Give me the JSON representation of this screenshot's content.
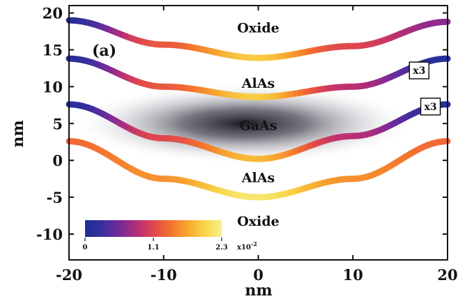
{
  "chart_data": {
    "type": "line",
    "panel_label": "(a)",
    "xlabel": "nm",
    "ylabel": "nm",
    "xlim": [
      -20,
      20
    ],
    "ylim": [
      -13.5,
      21
    ],
    "xticks": [
      -20,
      -10,
      0,
      10,
      20
    ],
    "yticks": [
      -10,
      -5,
      0,
      5,
      10,
      15,
      20
    ],
    "grid": false,
    "interfaces": [
      {
        "x": [
          -20,
          -10,
          0,
          10,
          20
        ],
        "y": [
          19,
          15.7,
          13.9,
          15.5,
          18.8
        ],
        "c": [
          0.05,
          0.55,
          0.85,
          0.5,
          0.3
        ]
      },
      {
        "x": [
          -20,
          -10,
          0,
          10,
          20
        ],
        "y": [
          13.8,
          10,
          8.6,
          10,
          13.8
        ],
        "c": [
          0.05,
          0.55,
          0.85,
          0.4,
          0.05
        ],
        "scale_label": "x3"
      },
      {
        "x": [
          -20,
          -10,
          0,
          10,
          20
        ],
        "y": [
          7.6,
          3.0,
          0.2,
          3.3,
          7.6
        ],
        "c": [
          0.05,
          0.5,
          0.8,
          0.4,
          0.05
        ],
        "scale_label": "x3"
      },
      {
        "x": [
          -20,
          -10,
          0,
          10,
          20
        ],
        "y": [
          2.6,
          -2.5,
          -5,
          -2.5,
          2.6
        ],
        "c": [
          0.6,
          0.7,
          0.95,
          0.7,
          0.6
        ]
      }
    ],
    "regions": [
      {
        "label": "Oxide",
        "x": 0,
        "y": 18
      },
      {
        "label": "AlAs",
        "x": 0,
        "y": 10.5
      },
      {
        "label": "GaAs",
        "x": 0,
        "y": 4.8
      },
      {
        "label": "AlAs",
        "x": 0,
        "y": -2.3
      },
      {
        "label": "Oxide",
        "x": 0,
        "y": -8.2
      }
    ],
    "density": {
      "label": "GaAs",
      "center": [
        -1.5,
        5
      ],
      "spread": [
        7,
        2.5
      ]
    },
    "colorbar": {
      "min": 0,
      "max": 2.3,
      "ticks": [
        "0",
        "1.1",
        "2.3"
      ],
      "units": "x10",
      "exponent": "-2",
      "colors": [
        "#1b2f96",
        "#3a2f9c",
        "#742a9a",
        "#b32d7a",
        "#e0464d",
        "#f4722e",
        "#f7a62f",
        "#f8d548",
        "#f7f08a"
      ]
    }
  }
}
